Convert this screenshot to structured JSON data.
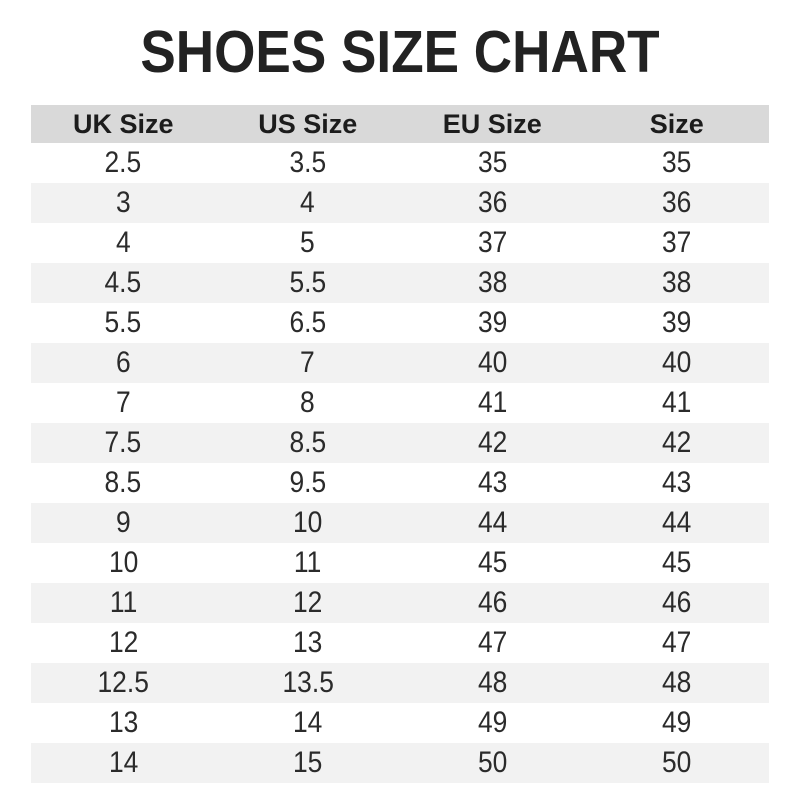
{
  "title": "SHOES SIZE CHART",
  "table": {
    "headers": [
      "UK Size",
      "US Size",
      "EU Size",
      "Size"
    ],
    "rows": [
      [
        "2.5",
        "3.5",
        "35",
        "35"
      ],
      [
        "3",
        "4",
        "36",
        "36"
      ],
      [
        "4",
        "5",
        "37",
        "37"
      ],
      [
        "4.5",
        "5.5",
        "38",
        "38"
      ],
      [
        "5.5",
        "6.5",
        "39",
        "39"
      ],
      [
        "6",
        "7",
        "40",
        "40"
      ],
      [
        "7",
        "8",
        "41",
        "41"
      ],
      [
        "7.5",
        "8.5",
        "42",
        "42"
      ],
      [
        "8.5",
        "9.5",
        "43",
        "43"
      ],
      [
        "9",
        "10",
        "44",
        "44"
      ],
      [
        "10",
        "11",
        "45",
        "45"
      ],
      [
        "11",
        "12",
        "46",
        "46"
      ],
      [
        "12",
        "13",
        "47",
        "47"
      ],
      [
        "12.5",
        "13.5",
        "48",
        "48"
      ],
      [
        "13",
        "14",
        "49",
        "49"
      ],
      [
        "14",
        "15",
        "50",
        "50"
      ]
    ]
  },
  "chart_data": {
    "type": "table",
    "title": "SHOES SIZE CHART",
    "columns": [
      "UK Size",
      "US Size",
      "EU Size",
      "Size"
    ],
    "rows": [
      [
        2.5,
        3.5,
        35,
        35
      ],
      [
        3,
        4,
        36,
        36
      ],
      [
        4,
        5,
        37,
        37
      ],
      [
        4.5,
        5.5,
        38,
        38
      ],
      [
        5.5,
        6.5,
        39,
        39
      ],
      [
        6,
        7,
        40,
        40
      ],
      [
        7,
        8,
        41,
        41
      ],
      [
        7.5,
        8.5,
        42,
        42
      ],
      [
        8.5,
        9.5,
        43,
        43
      ],
      [
        9,
        10,
        44,
        44
      ],
      [
        10,
        11,
        45,
        45
      ],
      [
        11,
        12,
        46,
        46
      ],
      [
        12,
        13,
        47,
        47
      ],
      [
        12.5,
        13.5,
        48,
        48
      ],
      [
        13,
        14,
        49,
        49
      ],
      [
        14,
        15,
        50,
        50
      ]
    ],
    "layout_hints": {
      "header_row": true,
      "zebra_striping": true,
      "first_row_background": "white"
    }
  },
  "colors": {
    "title": "#222222",
    "header_bg": "#d9d9d9",
    "row_stripe_bg": "#f2f2f2",
    "row_bg": "#ffffff",
    "text": "#2b2b2b"
  }
}
